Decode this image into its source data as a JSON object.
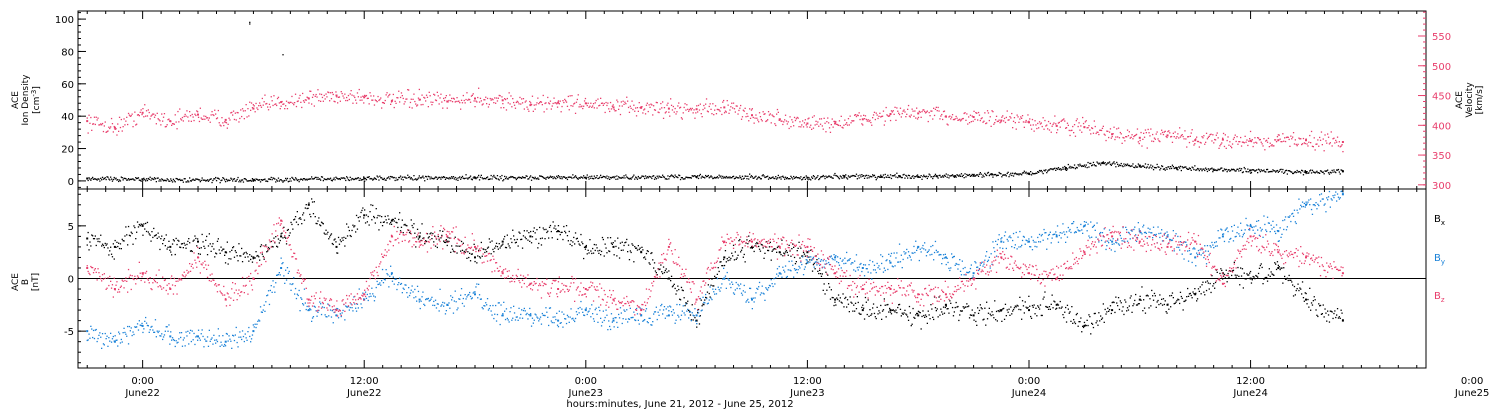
{
  "colors": {
    "axis": "#000000",
    "density": "#000000",
    "velocity": "#e83e6c",
    "bx": "#000000",
    "by": "#1a82d8",
    "bz": "#e83e6c"
  },
  "chart_data": [
    {
      "type": "scatter",
      "panel": "top",
      "left_axis": {
        "label_lines": [
          "ACE",
          "Ion Density"
        ],
        "unit_base": "[cm",
        "unit_sup": "-3",
        "unit_end": "]",
        "range": [
          -5,
          105
        ],
        "tick_labels": [
          "0",
          "20",
          "40",
          "60",
          "80",
          "100"
        ]
      },
      "right_axis": {
        "label_lines": [
          "ACE",
          "Velocity",
          "[km/s]"
        ],
        "range": [
          293,
          592
        ],
        "tick_labels": [
          "300",
          "350",
          "400",
          "450",
          "500",
          "550"
        ],
        "color": "#e83e6c"
      },
      "series": [
        {
          "color": "#000000",
          "axis": "left",
          "x_hours": [
            -3,
            0,
            6,
            12,
            18,
            24,
            30,
            36,
            38,
            40,
            41,
            42,
            43,
            44,
            45,
            46,
            48,
            50,
            52,
            54,
            56,
            58,
            60,
            63,
            65
          ],
          "values": [
            1.5,
            1,
            0.5,
            1.5,
            2,
            2,
            2.5,
            2,
            3,
            2.5,
            3,
            2.5,
            3,
            3,
            3.5,
            4,
            4.5,
            8,
            11,
            9,
            8,
            7,
            6.5,
            5.5,
            6
          ]
        },
        {
          "color": "#e83e6c",
          "axis": "right",
          "x_hours": [
            -3,
            -1.5,
            0,
            1.5,
            3,
            4.5,
            6,
            7.5,
            9,
            10.5,
            12,
            13.5,
            15,
            16.5,
            18,
            19.5,
            21,
            22.5,
            24,
            25.5,
            27,
            28.5,
            30,
            31.5,
            33,
            34.5,
            36,
            37.5,
            39,
            40.5,
            42,
            43.5,
            45,
            46.5,
            48,
            49.5,
            51,
            52.5,
            54,
            55.5,
            57,
            58.5,
            60,
            61.5,
            63,
            65
          ],
          "values": [
            407,
            396,
            421,
            407,
            418,
            409,
            428,
            439,
            445,
            450,
            447,
            441,
            443,
            440,
            445,
            442,
            434,
            438,
            437,
            430,
            430,
            428,
            427,
            430,
            417,
            410,
            403,
            403,
            410,
            419,
            420,
            415,
            414,
            408,
            405,
            399,
            397,
            385,
            379,
            383,
            375,
            376,
            374,
            375,
            375,
            372
          ]
        }
      ]
    },
    {
      "type": "scatter",
      "panel": "bottom",
      "left_axis": {
        "label_lines": [
          "ACE",
          "B"
        ],
        "unit_base": "[nT]",
        "range": [
          -8.5,
          8.5
        ],
        "tick_labels": [
          "-5",
          "0",
          "5"
        ]
      },
      "series": [
        {
          "name": "B",
          "sub": "x",
          "color": "#000000",
          "x_hours": [
            -3,
            -1.5,
            0,
            1.5,
            3,
            4.5,
            6,
            7.5,
            9,
            10.5,
            12,
            13.5,
            15,
            16.5,
            18,
            19.5,
            21,
            22.5,
            24,
            25.5,
            27,
            28.5,
            30,
            31.5,
            33,
            34.5,
            36,
            37.5,
            39,
            40.5,
            42,
            43.5,
            45,
            46.5,
            48,
            49.5,
            51,
            52.5,
            54,
            55.5,
            57,
            58.5,
            60,
            61.5,
            63,
            65
          ],
          "values": [
            3.8,
            3,
            5,
            3,
            3.5,
            2.5,
            2,
            4,
            7,
            3,
            6,
            5.5,
            4,
            3.5,
            2,
            3.5,
            4,
            4.5,
            3,
            3,
            2.5,
            0,
            -4,
            2,
            3,
            2.5,
            2.5,
            -2,
            -3,
            -3,
            -3.5,
            -2.5,
            -3.5,
            -3,
            -3,
            -2.5,
            -4.5,
            -3,
            -2,
            -2.5,
            -1.5,
            0.5,
            0,
            1,
            -2,
            -4
          ]
        },
        {
          "name": "B",
          "sub": "y",
          "color": "#1a82d8",
          "x_hours": [
            -3,
            -1.5,
            0,
            1.5,
            3,
            4.5,
            6,
            7.5,
            9,
            10.5,
            12,
            13.5,
            15,
            16.5,
            18,
            19.5,
            21,
            22.5,
            24,
            25.5,
            27,
            28.5,
            30,
            31.5,
            33,
            34.5,
            36,
            37.5,
            39,
            40.5,
            42,
            43.5,
            45,
            46.5,
            48,
            49.5,
            51,
            52.5,
            54,
            55.5,
            57,
            58.5,
            60,
            61.5,
            63,
            65
          ],
          "values": [
            -5,
            -6,
            -4.5,
            -5.5,
            -5.5,
            -6,
            -5,
            1,
            -3,
            -3.5,
            -2,
            0.5,
            -2,
            -2.5,
            -1.5,
            -3.5,
            -3.5,
            -4,
            -3,
            -4,
            -3.5,
            -3.5,
            -3.5,
            0,
            -2,
            0.5,
            1.5,
            2,
            1,
            1.5,
            3,
            2,
            0.5,
            3.5,
            3.5,
            4,
            5,
            3.5,
            4.5,
            4,
            2,
            4,
            5,
            4.5,
            7,
            8
          ]
        },
        {
          "name": "B",
          "sub": "z",
          "color": "#e83e6c",
          "x_hours": [
            -3,
            -1.5,
            0,
            1.5,
            3,
            4.5,
            6,
            7.5,
            9,
            10.5,
            12,
            13.5,
            15,
            16.5,
            18,
            19.5,
            21,
            22.5,
            24,
            25.5,
            27,
            28.5,
            30,
            31.5,
            33,
            34.5,
            36,
            37.5,
            39,
            40.5,
            42,
            43.5,
            45,
            46.5,
            48,
            49.5,
            51,
            52.5,
            54,
            55.5,
            57,
            58.5,
            60,
            61.5,
            63,
            65
          ],
          "values": [
            1,
            -1,
            0.5,
            -1,
            2,
            -2,
            0,
            5.5,
            -2,
            -3,
            -1.5,
            4,
            3.5,
            4,
            3,
            0.5,
            -0.5,
            -1,
            -1,
            -2,
            -3,
            3,
            -2,
            3.5,
            3.5,
            3,
            3,
            0.5,
            -1,
            -1,
            -1.5,
            -1.5,
            0,
            2,
            0.5,
            0,
            2.5,
            4,
            3.5,
            3,
            3.5,
            -0.5,
            4,
            2.5,
            2,
            0.5
          ]
        }
      ]
    }
  ],
  "time_axis": {
    "range_hours": [
      -3.5,
      69.5
    ],
    "major_ticks": [
      {
        "hour": 0,
        "time": "0:00",
        "date": "June22"
      },
      {
        "hour": 12,
        "time": "12:00",
        "date": "June22"
      },
      {
        "hour": 24,
        "time": "0:00",
        "date": "June23"
      },
      {
        "hour": 36,
        "time": "12:00",
        "date": "June23"
      },
      {
        "hour": 48,
        "time": "0:00",
        "date": "June24"
      },
      {
        "hour": 60,
        "time": "12:00",
        "date": "June24"
      },
      {
        "hour": 72,
        "time": "0:00",
        "date": "June25"
      }
    ],
    "xlabel": "hours:minutes, June 21, 2012 - June 25, 2012"
  }
}
